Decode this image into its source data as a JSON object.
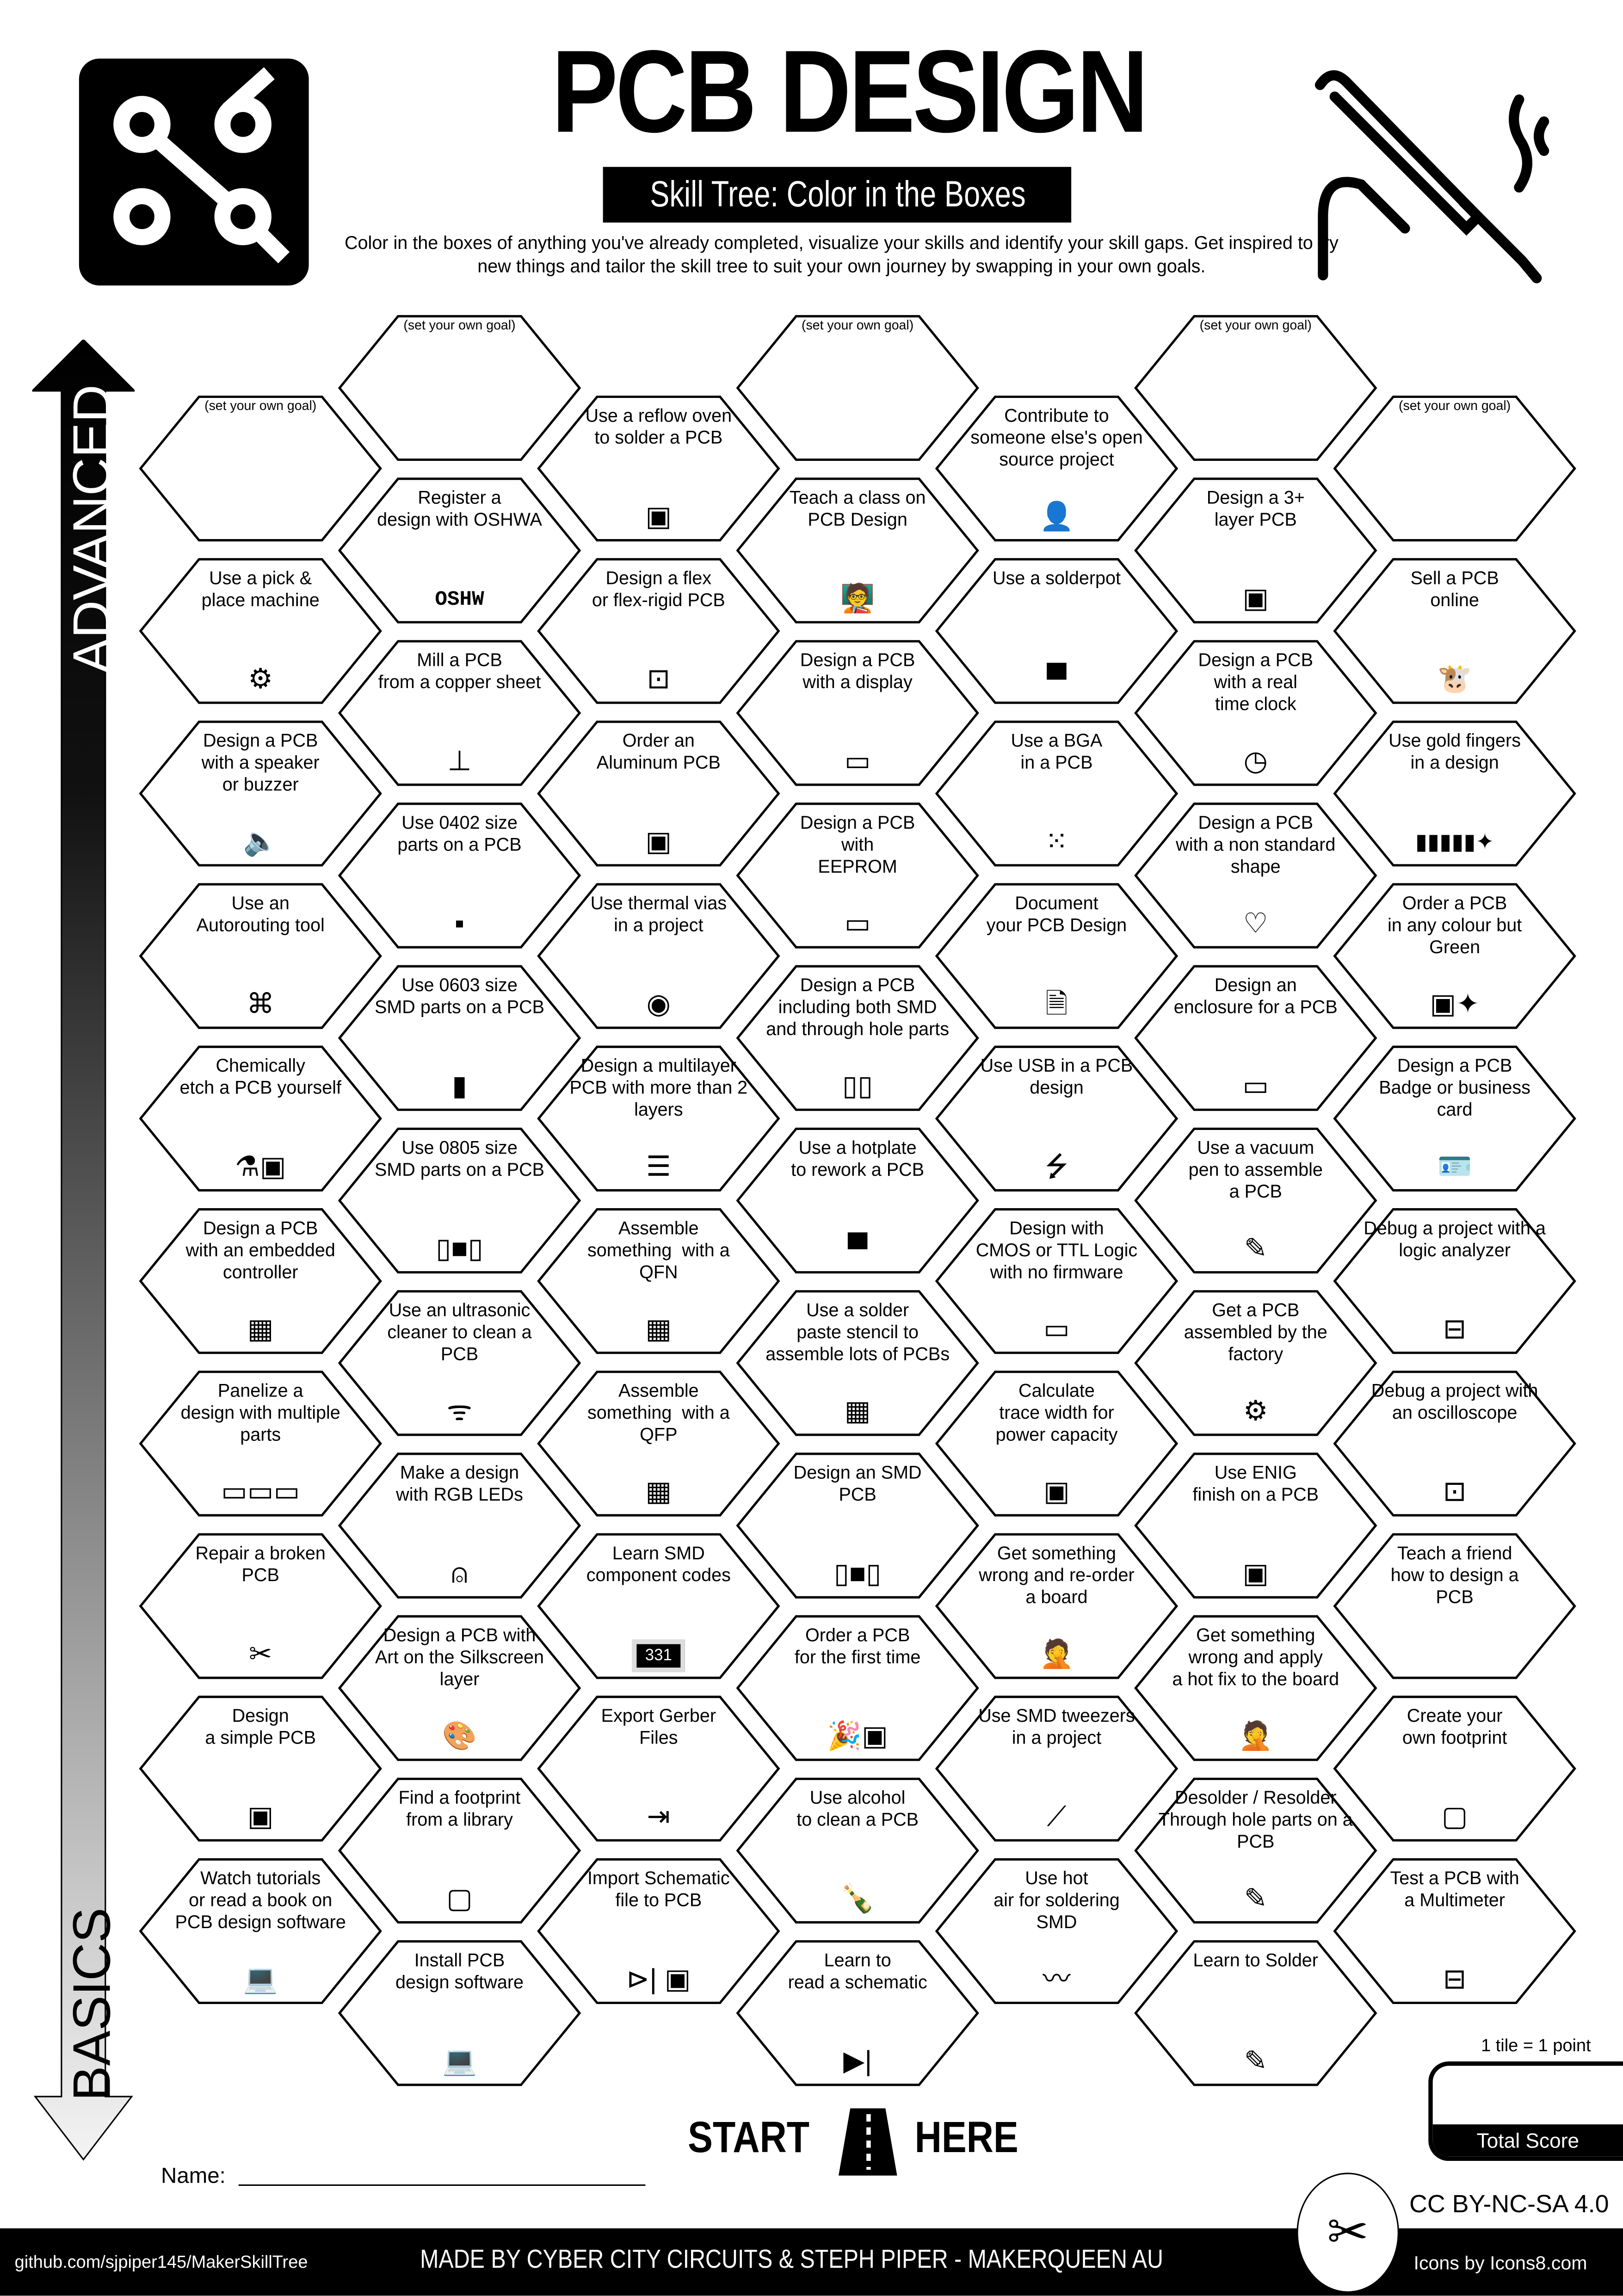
{
  "header": {
    "title": "PCB DESIGN",
    "subtitle": "Skill Tree: Color in the Boxes",
    "description": "Color in the boxes of anything you've already completed, visualize your skills and identify your skill gaps.  Get inspired to try new things and tailor the skill tree to suit your own journey by swapping in your own goals."
  },
  "axis": {
    "top": "ADVANCED",
    "bottom": "BASICS"
  },
  "start": {
    "left": "START",
    "right": "HERE"
  },
  "score": {
    "note": "1 tile = 1 point",
    "label": "Total Score"
  },
  "name_label": "Name:",
  "license": "CC BY-NC-SA 4.0",
  "footer": {
    "github": "github.com/sjpiper145/MakerSkillTree",
    "made_by": "MADE BY CYBER CITY CIRCUITS & STEPH PIPER  -  MAKERQUEEN AU",
    "icons": "Icons by Icons8.com"
  },
  "columns": [
    [
      {
        "label": "(set your own goal)",
        "icon": "",
        "goal": true
      },
      {
        "label": "Use a pick &\nplace machine",
        "icon": "robot-arm-icon",
        "glyph": "⚙"
      },
      {
        "label": "Design a PCB\nwith a speaker\nor buzzer",
        "icon": "speaker-icon",
        "glyph": "🔈"
      },
      {
        "label": "Use an\nAutorouting tool",
        "icon": "circuit-icon",
        "glyph": "⌘"
      },
      {
        "label": "Chemically\netch a PCB yourself",
        "icon": "flask-icon",
        "glyph": "⚗▣"
      },
      {
        "label": "Design a PCB\nwith an embedded\ncontroller",
        "icon": "chip-icon",
        "glyph": "▦"
      },
      {
        "label": "Panelize a\ndesign with multiple\nparts",
        "icon": "panel-icon",
        "glyph": "▭▭▭"
      },
      {
        "label": "Repair a broken\nPCB",
        "icon": "tools-icon",
        "glyph": "✂"
      },
      {
        "label": "Design\na simple PCB",
        "icon": "pcb-icon",
        "glyph": "▣"
      },
      {
        "label": "Watch tutorials\nor read a book on\nPCB design software",
        "icon": "laptop-gear-icon",
        "glyph": "💻"
      }
    ],
    [
      {
        "label": "(set your own goal)",
        "icon": "",
        "goal": true
      },
      {
        "label": "Register a\ndesign with OSHWA",
        "icon": "oshw-icon",
        "glyph": "OSHW"
      },
      {
        "label": "Mill a PCB\nfrom a copper sheet",
        "icon": "mill-icon",
        "glyph": "⊥"
      },
      {
        "label": "Use 0402 size\nparts on a PCB",
        "icon": "resistor-0402-icon",
        "glyph": "▪"
      },
      {
        "label": "Use 0603 size\nSMD parts on a PCB",
        "icon": "resistor-0603-icon",
        "glyph": "▮"
      },
      {
        "label": "Use 0805 size\nSMD parts on a PCB",
        "icon": "resistor-0805-icon",
        "glyph": "▯■▯"
      },
      {
        "label": "Use an ultrasonic\ncleaner to clean a\nPCB",
        "icon": "wifi-icon",
        "glyph": "ᯤ"
      },
      {
        "label": "Make a design\nwith RGB LEDs",
        "icon": "led-icon",
        "glyph": "⍝"
      },
      {
        "label": "Design a PCB with\nArt on the Silkscreen\nlayer",
        "icon": "palette-icon",
        "glyph": "🎨"
      },
      {
        "label": "Find a footprint\nfrom a library",
        "icon": "footprint-icon",
        "glyph": "▢"
      },
      {
        "label": "Install PCB\ndesign software",
        "icon": "laptop-gear-icon",
        "glyph": "💻"
      }
    ],
    [
      {
        "label": "Use a reflow oven\nto solder a PCB",
        "icon": "oven-icon",
        "glyph": "▣"
      },
      {
        "label": "Design a flex\nor flex-rigid PCB",
        "icon": "flex-pcb-icon",
        "glyph": "⊡"
      },
      {
        "label": "Order an\nAluminum PCB",
        "icon": "pcb-icon",
        "glyph": "▣"
      },
      {
        "label": "Use thermal vias\nin a project",
        "icon": "via-icon",
        "glyph": "◉"
      },
      {
        "label": "Design a multilayer\nPCB with more than 2\nlayers",
        "icon": "layers-icon",
        "glyph": "☰"
      },
      {
        "label": "Assemble\nsomething  with a\nQFN",
        "icon": "qfn-chip-icon",
        "glyph": "▦"
      },
      {
        "label": "Assemble\nsomething  with a\nQFP",
        "icon": "qfp-chip-icon",
        "glyph": "▦"
      },
      {
        "label": "Learn SMD\ncomponent codes",
        "icon": "smd-code-icon",
        "glyph": "331"
      },
      {
        "label": "Export Gerber\nFiles",
        "icon": "export-icon",
        "glyph": "⇥"
      },
      {
        "label": "Import Schematic\nfile to PCB",
        "icon": "diode-pcb-icon",
        "glyph": "⊳| ▣"
      }
    ],
    [
      {
        "label": "(set your own goal)",
        "icon": "",
        "goal": true
      },
      {
        "label": "Teach a class on\nPCB Design",
        "icon": "teacher-icon",
        "glyph": "🧑‍🏫"
      },
      {
        "label": "Design a PCB\nwith a display",
        "icon": "display-icon",
        "glyph": "▭"
      },
      {
        "label": "Design a PCB\nwith\nEEPROM",
        "icon": "eeprom-chip-icon",
        "glyph": "▭"
      },
      {
        "label": "Design a PCB\nincluding both SMD\nand through hole parts",
        "icon": "components-icon",
        "glyph": "▯▯"
      },
      {
        "label": "Use a hotplate\nto rework a PCB",
        "icon": "hotplate-icon",
        "glyph": "▀"
      },
      {
        "label": "Use a solder\npaste stencil to\nassemble lots of PCBs",
        "icon": "stencil-icon",
        "glyph": "▦"
      },
      {
        "label": "Design an SMD\nPCB",
        "icon": "smd-resistor-icon",
        "glyph": "▯■▯"
      },
      {
        "label": "Order a PCB\nfor the first time",
        "icon": "party-pcb-icon",
        "glyph": "🎉▣"
      },
      {
        "label": "Use alcohol\nto clean a PCB",
        "icon": "bottle-icon",
        "glyph": "🍾"
      },
      {
        "label": "Learn to\nread a schematic",
        "icon": "diode-icon",
        "glyph": "▶|"
      }
    ],
    [
      {
        "label": "Contribute to\nsomeone else's open\nsource project",
        "icon": "contributor-icon",
        "glyph": "👤"
      },
      {
        "label": "Use a solderpot",
        "icon": "solderpot-icon",
        "glyph": "▀"
      },
      {
        "label": "Use a BGA\nin a PCB",
        "icon": "bga-icon",
        "glyph": "⁙"
      },
      {
        "label": "Document\nyour PCB Design",
        "icon": "document-icon",
        "glyph": "🗎"
      },
      {
        "label": "Use USB in a PCB\ndesign",
        "icon": "usb-icon",
        "glyph": "⭍"
      },
      {
        "label": "Design with\nCMOS or TTL Logic\nwith no firmware",
        "icon": "logic-chip-icon",
        "glyph": "▭"
      },
      {
        "label": "Calculate\ntrace width for\npower capacity",
        "icon": "pcb-icon",
        "glyph": "▣"
      },
      {
        "label": "Get something\nwrong and re-order\na board",
        "icon": "facepalm-icon",
        "glyph": "🤦"
      },
      {
        "label": "Use SMD tweezers\nin a project",
        "icon": "tweezers-icon",
        "glyph": "⟋"
      },
      {
        "label": "Use hot\nair for soldering\nSMD",
        "icon": "hot-air-icon",
        "glyph": "〰"
      }
    ],
    [
      {
        "label": "(set your own goal)",
        "icon": "",
        "goal": true
      },
      {
        "label": "Design a 3+\nlayer PCB",
        "icon": "pcb-icon",
        "glyph": "▣"
      },
      {
        "label": "Design a PCB\nwith a real\ntime clock",
        "icon": "clock-icon",
        "glyph": "◷"
      },
      {
        "label": "Design a PCB\nwith a non standard\nshape",
        "icon": "heart-icon",
        "glyph": "♡"
      },
      {
        "label": "Design an\nenclosure for a PCB",
        "icon": "enclosure-icon",
        "glyph": "▭"
      },
      {
        "label": "Use a vacuum\npen to assemble\na PCB",
        "icon": "vacuum-pen-icon",
        "glyph": "✎"
      },
      {
        "label": "Get a PCB\nassembled by the\nfactory",
        "icon": "robot-arm-icon",
        "glyph": "⚙"
      },
      {
        "label": "Use ENIG\nfinish on a PCB",
        "icon": "pcb-icon",
        "glyph": "▣"
      },
      {
        "label": "Get something\nwrong and apply\na hot fix to the board",
        "icon": "facepalm-icon",
        "glyph": "🤦"
      },
      {
        "label": "Desolder / Resolder\nThrough hole parts on a\nPCB",
        "icon": "soldering-iron-icon",
        "glyph": "✎"
      },
      {
        "label": "Learn to Solder",
        "icon": "soldering-iron-icon",
        "glyph": "✎"
      }
    ],
    [
      {
        "label": "(set your own goal)",
        "icon": "",
        "goal": true
      },
      {
        "label": "Sell a PCB\nonline",
        "icon": "cow-icon",
        "glyph": "🐮"
      },
      {
        "label": "Use gold fingers\nin a design",
        "icon": "gold-fingers-icon",
        "glyph": "▮▮▮▮▮✦"
      },
      {
        "label": "Order a PCB\nin any colour but\nGreen",
        "icon": "pcb-sparkle-icon",
        "glyph": "▣✦"
      },
      {
        "label": "Design a PCB\nBadge or business\ncard",
        "icon": "id-badge-icon",
        "glyph": "🪪"
      },
      {
        "label": "Debug a project with a\nlogic analyzer",
        "icon": "multimeter-icon",
        "glyph": "⊟"
      },
      {
        "label": "Debug a project with\nan oscilloscope",
        "icon": "oscilloscope-icon",
        "glyph": "⊡"
      },
      {
        "label": "Teach a friend\nhow to design a\nPCB",
        "icon": "gift-bow-icon",
        "glyph": ""
      },
      {
        "label": "Create your\nown footprint",
        "icon": "footprint-icon",
        "glyph": "▢"
      },
      {
        "label": "Test a PCB with\na Multimeter",
        "icon": "multimeter-icon",
        "glyph": "⊟"
      }
    ]
  ]
}
